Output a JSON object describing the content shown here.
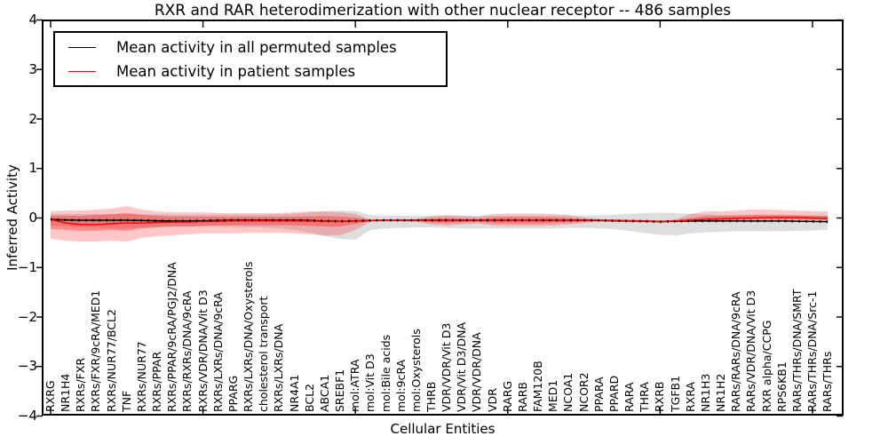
{
  "title": "RXR and RAR heterodimerization with other nuclear receptor -- 486 samples",
  "axes": {
    "ylabel": "Inferred Activity",
    "xlabel": "Cellular Entities",
    "ytick_labels": [
      "4",
      "3",
      "2",
      "1",
      "0",
      "−1",
      "−2",
      "−3",
      "−4"
    ],
    "ytick_values": [
      4,
      3,
      2,
      1,
      0,
      -1,
      -2,
      -3,
      -4
    ]
  },
  "legend": {
    "entries": [
      {
        "label": "Mean activity in all permuted samples",
        "color": "#000000"
      },
      {
        "label": "Mean activity in patient samples",
        "color": "#ff0000"
      }
    ]
  },
  "chart_data": {
    "type": "line",
    "title": "RXR and RAR heterodimerization with other nuclear receptor -- 486 samples",
    "xlabel": "Cellular Entities",
    "ylabel": "Inferred Activity",
    "ylim": [
      -4,
      4
    ],
    "grid": false,
    "legend_position": "upper left",
    "x_major_tick_indices": [
      0,
      10,
      20,
      30,
      40,
      50
    ],
    "categories": [
      "RXRG",
      "NR1H4",
      "RXRs/FXR",
      "RXRs/FXR/9cRA/MED1",
      "RXRs/NUR77/BCL2",
      "TNF",
      "RXRs/NUR77",
      "RXRs/PPAR",
      "RXRs/PPAR/9cRA/PGJ2/DNA",
      "RXRs/RXRs/DNA/9cRA",
      "RXRs/VDR/DNA/Vit D3",
      "RXRs/LXRs/DNA/9cRA",
      "PPARG",
      "RXRs/LXRs/DNA/Oxysterols",
      "cholesterol transport",
      "RXRs/LXRs/DNA",
      "NR4A1",
      "BCL2",
      "ABCA1",
      "SREBF1",
      "mol:ATRA",
      "mol:Vit D3",
      "mol:Bile acids",
      "mol:9cRA",
      "mol:Oxysterols",
      "THRB",
      "VDR/VDR/Vit D3",
      "VDR/Vit D3/DNA",
      "VDR/VDR/DNA",
      "VDR",
      "RARG",
      "RARB",
      "FAM120B",
      "MED1",
      "NCOA1",
      "NCOR2",
      "PPARA",
      "PPARD",
      "RARA",
      "THRA",
      "RXRB",
      "TGFB1",
      "RXRA",
      "NR1H3",
      "NR1H2",
      "RARs/RARs/DNA/9cRA",
      "RARs/VDR/DNA/Vit D3",
      "RXR alpha/CCPG",
      "RPS6KB1",
      "RARs/THRs/DNA/SMRT",
      "RARs/THRs/DNA/Src-1",
      "RARs/THRs"
    ],
    "series": [
      {
        "name": "Mean activity in all permuted samples",
        "color": "#000000",
        "dotted_overlay": true,
        "values": [
          -0.03,
          -0.04,
          -0.045,
          -0.045,
          -0.045,
          -0.045,
          -0.05,
          -0.055,
          -0.06,
          -0.06,
          -0.055,
          -0.05,
          -0.045,
          -0.045,
          -0.045,
          -0.045,
          -0.045,
          -0.05,
          -0.06,
          -0.065,
          -0.06,
          -0.05,
          -0.045,
          -0.045,
          -0.045,
          -0.045,
          -0.045,
          -0.045,
          -0.045,
          -0.045,
          -0.045,
          -0.045,
          -0.045,
          -0.045,
          -0.045,
          -0.045,
          -0.05,
          -0.055,
          -0.06,
          -0.065,
          -0.075,
          -0.065,
          -0.06,
          -0.06,
          -0.06,
          -0.06,
          -0.06,
          -0.06,
          -0.06,
          -0.065,
          -0.07,
          -0.075
        ]
      },
      {
        "name": "Mean activity in patient samples",
        "color": "#ff0000",
        "dotted_overlay": false,
        "values": [
          -0.03,
          -0.1,
          -0.135,
          -0.135,
          -0.115,
          -0.1,
          -0.1,
          -0.09,
          -0.08,
          -0.08,
          -0.07,
          -0.065,
          -0.055,
          -0.055,
          -0.055,
          -0.055,
          -0.055,
          -0.06,
          -0.065,
          -0.07,
          -0.06,
          -0.05,
          -0.045,
          -0.045,
          -0.045,
          -0.045,
          -0.045,
          -0.045,
          -0.045,
          -0.045,
          -0.045,
          -0.045,
          -0.045,
          -0.045,
          -0.045,
          -0.045,
          -0.045,
          -0.05,
          -0.055,
          -0.06,
          -0.07,
          -0.06,
          -0.045,
          -0.025,
          -0.015,
          -0.005,
          0.0,
          0.01,
          0.01,
          0.01,
          0.0,
          -0.01
        ]
      }
    ],
    "bands": [
      {
        "name": "permuted-range",
        "color": "rgba(0,0,0,0.13)",
        "top": [
          0.08,
          0.08,
          0.08,
          0.08,
          0.08,
          0.085,
          0.08,
          0.075,
          0.065,
          0.065,
          0.065,
          0.07,
          0.07,
          0.07,
          0.07,
          0.075,
          0.09,
          0.11,
          0.14,
          0.15,
          0.14,
          0.06,
          0.05,
          0.045,
          0.045,
          0.045,
          0.045,
          0.045,
          0.045,
          0.045,
          0.05,
          0.05,
          0.05,
          0.05,
          0.05,
          0.05,
          0.055,
          0.065,
          0.085,
          0.1,
          0.11,
          0.1,
          0.085,
          0.07,
          0.06,
          0.05,
          0.045,
          0.045,
          0.045,
          0.045,
          0.045,
          0.045
        ],
        "bottom": [
          -0.15,
          -0.17,
          -0.19,
          -0.2,
          -0.21,
          -0.21,
          -0.19,
          -0.18,
          -0.17,
          -0.17,
          -0.17,
          -0.17,
          -0.18,
          -0.19,
          -0.19,
          -0.21,
          -0.24,
          -0.3,
          -0.37,
          -0.42,
          -0.44,
          -0.24,
          -0.21,
          -0.2,
          -0.19,
          -0.19,
          -0.2,
          -0.21,
          -0.21,
          -0.21,
          -0.21,
          -0.21,
          -0.21,
          -0.21,
          -0.2,
          -0.2,
          -0.21,
          -0.225,
          -0.26,
          -0.305,
          -0.34,
          -0.35,
          -0.315,
          -0.29,
          -0.28,
          -0.27,
          -0.27,
          -0.27,
          -0.27,
          -0.26,
          -0.25,
          -0.24
        ]
      },
      {
        "name": "patient-outer-range",
        "color": "rgba(255,0,0,0.22)",
        "top": [
          0.135,
          0.15,
          0.15,
          0.17,
          0.19,
          0.24,
          0.17,
          0.135,
          0.115,
          0.115,
          0.115,
          0.1,
          0.1,
          0.1,
          0.1,
          0.1,
          0.115,
          0.135,
          0.135,
          0.115,
          0.08,
          -0.035,
          -0.03,
          -0.03,
          -0.02,
          0.035,
          0.06,
          0.045,
          0.025,
          0.08,
          0.09,
          0.09,
          0.09,
          0.08,
          0.06,
          0.01,
          -0.02,
          -0.03,
          -0.03,
          -0.04,
          -0.05,
          -0.03,
          0.08,
          0.135,
          0.135,
          0.15,
          0.17,
          0.17,
          0.16,
          0.15,
          0.14,
          0.135
        ],
        "bottom": [
          -0.42,
          -0.46,
          -0.475,
          -0.475,
          -0.46,
          -0.475,
          -0.4,
          -0.37,
          -0.35,
          -0.33,
          -0.31,
          -0.31,
          -0.31,
          -0.3,
          -0.3,
          -0.3,
          -0.31,
          -0.33,
          -0.35,
          -0.35,
          -0.24,
          -0.075,
          -0.065,
          -0.065,
          -0.08,
          -0.13,
          -0.15,
          -0.13,
          -0.11,
          -0.15,
          -0.16,
          -0.16,
          -0.16,
          -0.15,
          -0.13,
          -0.1,
          -0.075,
          -0.075,
          -0.085,
          -0.09,
          -0.09,
          -0.085,
          -0.08,
          -0.07,
          -0.055,
          -0.045,
          -0.04,
          -0.04,
          -0.04,
          -0.04,
          -0.045,
          -0.055
        ]
      },
      {
        "name": "patient-inner-range",
        "color": "rgba(255,0,0,0.30)",
        "top": [
          0.045,
          0.045,
          0.045,
          0.06,
          0.075,
          0.1,
          0.06,
          0.045,
          0.03,
          0.03,
          0.03,
          0.025,
          0.025,
          0.025,
          0.025,
          0.025,
          0.03,
          0.035,
          0.04,
          0.03,
          0.01,
          -0.04,
          -0.035,
          -0.035,
          -0.03,
          -0.01,
          0.0,
          -0.01,
          -0.02,
          0.01,
          0.02,
          0.02,
          0.02,
          0.01,
          0.0,
          -0.02,
          -0.035,
          -0.04,
          -0.045,
          -0.05,
          -0.06,
          -0.05,
          0.0,
          0.035,
          0.045,
          0.055,
          0.065,
          0.07,
          0.065,
          0.06,
          0.05,
          0.045
        ],
        "bottom": [
          -0.22,
          -0.24,
          -0.26,
          -0.26,
          -0.24,
          -0.26,
          -0.21,
          -0.19,
          -0.17,
          -0.17,
          -0.16,
          -0.15,
          -0.15,
          -0.145,
          -0.145,
          -0.145,
          -0.15,
          -0.16,
          -0.17,
          -0.17,
          -0.12,
          -0.06,
          -0.055,
          -0.055,
          -0.06,
          -0.09,
          -0.1,
          -0.09,
          -0.075,
          -0.1,
          -0.11,
          -0.11,
          -0.11,
          -0.1,
          -0.09,
          -0.075,
          -0.06,
          -0.06,
          -0.065,
          -0.075,
          -0.085,
          -0.075,
          -0.065,
          -0.055,
          -0.045,
          -0.035,
          -0.03,
          -0.03,
          -0.03,
          -0.03,
          -0.035,
          -0.04
        ]
      }
    ]
  }
}
